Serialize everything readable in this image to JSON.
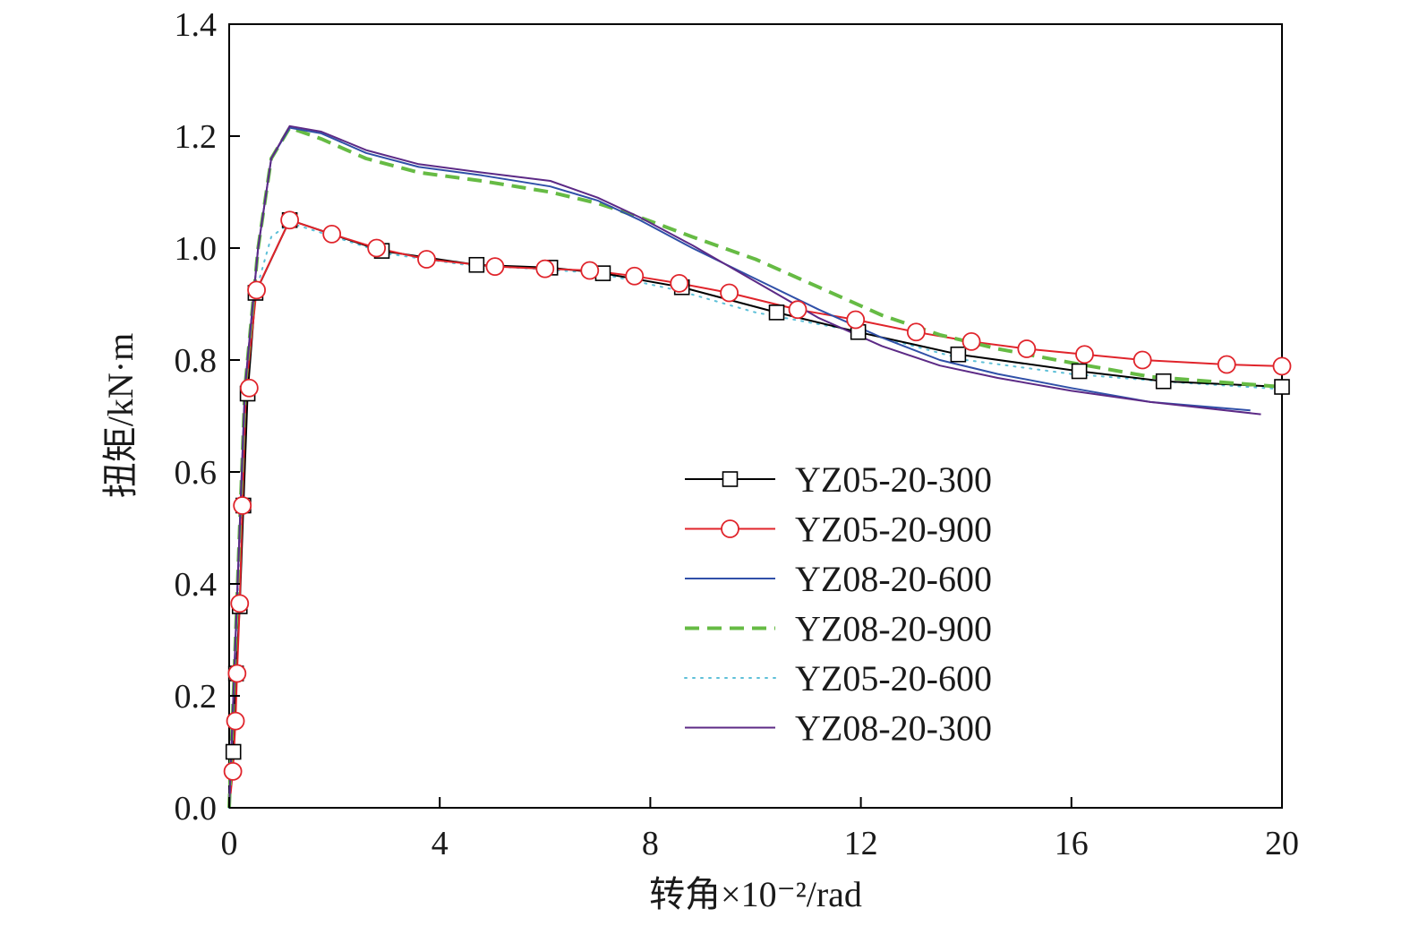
{
  "chart_data": {
    "type": "line",
    "xlabel": "转角×10⁻²/rad",
    "ylabel": "扭矩/kN·m",
    "xlim": [
      0,
      20
    ],
    "ylim": [
      0,
      1.4
    ],
    "xticks": [
      "0",
      "4",
      "8",
      "12",
      "16",
      "20"
    ],
    "yticks": [
      "0.0",
      "0.2",
      "0.4",
      "0.6",
      "0.8",
      "1.0",
      "1.2",
      "1.4"
    ],
    "grid": false,
    "legend_position": "bottom-right",
    "series": [
      {
        "name": "YZ05-20-300",
        "color": "#000000",
        "style": "solid",
        "marker": "square",
        "x": [
          0.0,
          0.08,
          0.13,
          0.2,
          0.27,
          0.35,
          0.5,
          1.15,
          2.9,
          4.7,
          6.1,
          7.1,
          8.6,
          10.4,
          11.95,
          13.85,
          16.15,
          17.75,
          20.0
        ],
        "y": [
          0.0,
          0.1,
          0.24,
          0.36,
          0.54,
          0.74,
          0.92,
          1.05,
          0.995,
          0.97,
          0.965,
          0.955,
          0.93,
          0.885,
          0.85,
          0.81,
          0.78,
          0.762,
          0.752
        ],
        "markers_x": [
          0.08,
          0.13,
          0.2,
          0.27,
          0.35,
          0.5,
          1.15,
          2.9,
          4.7,
          6.1,
          7.1,
          8.6,
          10.4,
          11.95,
          13.85,
          16.15,
          17.75,
          20.0
        ],
        "markers_y": [
          0.1,
          0.24,
          0.36,
          0.54,
          0.74,
          0.92,
          1.05,
          0.995,
          0.97,
          0.965,
          0.955,
          0.93,
          0.885,
          0.85,
          0.81,
          0.78,
          0.762,
          0.752
        ]
      },
      {
        "name": "YZ05-20-900",
        "color": "#e0242b",
        "style": "solid",
        "marker": "circle",
        "x": [
          0.0,
          0.07,
          0.12,
          0.15,
          0.2,
          0.25,
          0.32,
          0.38,
          0.52,
          1.15,
          1.95,
          2.8,
          3.75,
          5.05,
          6.0,
          6.85,
          7.7,
          8.55,
          9.5,
          10.8,
          11.9,
          13.05,
          14.1,
          15.15,
          16.25,
          17.35,
          18.95,
          20.0
        ],
        "y": [
          0.0,
          0.065,
          0.155,
          0.24,
          0.365,
          0.54,
          0.75,
          0.8,
          0.925,
          1.05,
          1.025,
          1.0,
          0.98,
          0.967,
          0.963,
          0.96,
          0.95,
          0.937,
          0.92,
          0.89,
          0.872,
          0.85,
          0.833,
          0.82,
          0.81,
          0.8,
          0.792,
          0.789
        ],
        "markers_x": [
          0.07,
          0.12,
          0.15,
          0.2,
          0.25,
          0.38,
          0.52,
          1.15,
          1.95,
          2.8,
          3.75,
          5.05,
          6.0,
          6.85,
          7.7,
          8.55,
          9.5,
          10.8,
          11.9,
          13.05,
          14.1,
          15.15,
          16.25,
          17.35,
          18.95,
          20.0
        ],
        "markers_y": [
          0.065,
          0.155,
          0.24,
          0.365,
          0.54,
          0.75,
          0.925,
          1.05,
          1.025,
          1.0,
          0.98,
          0.967,
          0.963,
          0.96,
          0.95,
          0.937,
          0.92,
          0.89,
          0.872,
          0.85,
          0.833,
          0.82,
          0.81,
          0.8,
          0.792,
          0.789
        ]
      },
      {
        "name": "YZ08-20-600",
        "color": "#3050a8",
        "style": "solid",
        "marker": "none",
        "x": [
          0.0,
          0.3,
          0.55,
          0.8,
          1.15,
          1.75,
          2.6,
          3.6,
          4.8,
          6.1,
          7.0,
          7.8,
          8.8,
          10.0,
          11.2,
          12.4,
          13.5,
          14.6,
          16.0,
          17.5,
          19.4
        ],
        "y": [
          0.0,
          0.75,
          1.0,
          1.16,
          1.215,
          1.205,
          1.17,
          1.145,
          1.13,
          1.11,
          1.085,
          1.05,
          1.0,
          0.945,
          0.89,
          0.84,
          0.8,
          0.775,
          0.75,
          0.725,
          0.71
        ]
      },
      {
        "name": "YZ08-20-900",
        "color": "#66bb44",
        "style": "dashed",
        "marker": "none",
        "x": [
          0.0,
          0.3,
          0.55,
          0.8,
          1.15,
          1.75,
          2.6,
          3.6,
          4.8,
          6.1,
          7.0,
          7.8,
          8.8,
          10.0,
          11.2,
          12.4,
          13.5,
          14.6,
          16.0,
          17.5,
          20.0
        ],
        "y": [
          0.0,
          0.75,
          1.0,
          1.16,
          1.215,
          1.195,
          1.16,
          1.135,
          1.12,
          1.1,
          1.08,
          1.055,
          1.02,
          0.98,
          0.93,
          0.88,
          0.845,
          0.82,
          0.795,
          0.77,
          0.752
        ]
      },
      {
        "name": "YZ05-20-600",
        "color": "#5ec0d8",
        "style": "dotted",
        "marker": "none",
        "x": [
          0.0,
          0.15,
          0.3,
          0.5,
          0.8,
          1.15,
          2.0,
          3.0,
          4.5,
          6.0,
          7.0,
          8.5,
          10.0,
          12.0,
          14.0,
          16.0,
          18.0,
          20.0
        ],
        "y": [
          0.0,
          0.35,
          0.72,
          0.92,
          1.02,
          1.045,
          1.02,
          0.99,
          0.97,
          0.962,
          0.955,
          0.925,
          0.885,
          0.85,
          0.8,
          0.775,
          0.76,
          0.748
        ]
      },
      {
        "name": "YZ08-20-300",
        "color": "#5c2a86",
        "style": "solid",
        "marker": "none",
        "x": [
          0.0,
          0.3,
          0.55,
          0.8,
          1.15,
          1.75,
          2.6,
          3.6,
          4.8,
          6.1,
          7.0,
          7.8,
          8.8,
          10.0,
          11.2,
          12.4,
          13.5,
          14.6,
          16.0,
          17.5,
          19.6
        ],
        "y": [
          0.0,
          0.75,
          1.0,
          1.16,
          1.218,
          1.208,
          1.175,
          1.15,
          1.135,
          1.12,
          1.09,
          1.055,
          1.005,
          0.94,
          0.875,
          0.825,
          0.79,
          0.768,
          0.745,
          0.725,
          0.703
        ]
      }
    ]
  }
}
